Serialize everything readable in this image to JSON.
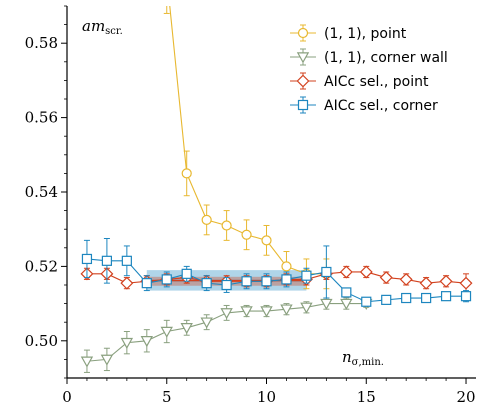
{
  "chart_data": {
    "type": "line",
    "title": "",
    "xlabel": "",
    "ylabel": "",
    "xlim": [
      0,
      20.5
    ],
    "ylim": [
      0.49,
      0.59
    ],
    "xticks": [
      0,
      5,
      10,
      15,
      20
    ],
    "yticks": [
      0.5,
      0.52,
      0.54,
      0.56,
      0.58
    ],
    "ytick_labels": [
      "0.50",
      "0.52",
      "0.54",
      "0.56",
      "0.58"
    ],
    "grid": false,
    "legend_position": "top-right",
    "annotations": {
      "y_name": "am",
      "y_name_sub": "scr.",
      "x_name": "n",
      "x_name_sub": "σ,min."
    },
    "series": [
      {
        "name": "(1, 1), point",
        "color": "#e8b830",
        "marker": "circle",
        "x": [
          5,
          6,
          7,
          8,
          9,
          10,
          11,
          12,
          13
        ],
        "y": [
          0.598,
          0.545,
          0.5325,
          0.531,
          0.5285,
          0.527,
          0.52,
          0.518,
          0.518
        ],
        "err": [
          0.01,
          0.006,
          0.004,
          0.004,
          0.004,
          0.004,
          0.004,
          0.004,
          0.004
        ]
      },
      {
        "name": "(1, 1), corner wall",
        "color": "#8aa07f",
        "marker": "triangle-down",
        "x": [
          1,
          2,
          3,
          4,
          5,
          6,
          7,
          8,
          9,
          10,
          11,
          12,
          13,
          14,
          15
        ],
        "y": [
          0.4945,
          0.495,
          0.4995,
          0.5,
          0.5025,
          0.5035,
          0.505,
          0.5075,
          0.508,
          0.508,
          0.5085,
          0.509,
          0.51,
          0.51,
          0.51
        ],
        "err": [
          0.003,
          0.003,
          0.003,
          0.003,
          0.003,
          0.002,
          0.002,
          0.002,
          0.0015,
          0.0015,
          0.0015,
          0.0015,
          0.0015,
          0.0015,
          0.001
        ]
      },
      {
        "name": "AICc sel., point",
        "color": "#d2411e",
        "marker": "diamond",
        "x": [
          1,
          2,
          3,
          4,
          5,
          6,
          7,
          8,
          9,
          10,
          11,
          12,
          13,
          14,
          15,
          16,
          17,
          18,
          19,
          20
        ],
        "y": [
          0.518,
          0.518,
          0.5155,
          0.516,
          0.5165,
          0.517,
          0.516,
          0.516,
          0.516,
          0.516,
          0.5165,
          0.5165,
          0.518,
          0.5185,
          0.5185,
          0.517,
          0.5165,
          0.5155,
          0.516,
          0.5155
        ],
        "err": [
          0.0015,
          0.0015,
          0.0015,
          0.0015,
          0.0015,
          0.0015,
          0.0015,
          0.0015,
          0.0015,
          0.0015,
          0.0015,
          0.0015,
          0.0015,
          0.0015,
          0.0015,
          0.0015,
          0.0015,
          0.0015,
          0.0015,
          0.0025
        ]
      },
      {
        "name": "AICc sel., corner",
        "color": "#1d86bf",
        "marker": "square",
        "x": [
          1,
          2,
          3,
          4,
          5,
          6,
          7,
          8,
          9,
          10,
          11,
          12,
          13,
          14,
          15,
          16,
          17,
          18,
          19,
          20
        ],
        "y": [
          0.522,
          0.5215,
          0.5215,
          0.5155,
          0.5165,
          0.518,
          0.5155,
          0.515,
          0.516,
          0.516,
          0.5165,
          0.5175,
          0.5185,
          0.513,
          0.5105,
          0.511,
          0.5115,
          0.5115,
          0.512,
          0.512
        ],
        "err": [
          0.005,
          0.006,
          0.004,
          0.002,
          0.002,
          0.002,
          0.002,
          0.002,
          0.002,
          0.002,
          0.002,
          0.002,
          0.007,
          0.001,
          0.001,
          0.001,
          0.001,
          0.001,
          0.001,
          0.0015
        ]
      }
    ],
    "bands": [
      {
        "color": "#1d86bf",
        "opacity": 0.35,
        "x_range": [
          4,
          12
        ],
        "y_range": [
          0.5135,
          0.519
        ]
      },
      {
        "color": "#d2411e",
        "opacity": 0.35,
        "x_range": [
          4,
          12
        ],
        "y_range": [
          0.5148,
          0.5172
        ]
      }
    ],
    "hlines": [
      {
        "color": "#1d86bf",
        "y": 0.5162,
        "x_range": [
          4,
          12
        ]
      },
      {
        "color": "#d2411e",
        "y": 0.5162,
        "x_range": [
          4,
          12
        ]
      }
    ]
  }
}
